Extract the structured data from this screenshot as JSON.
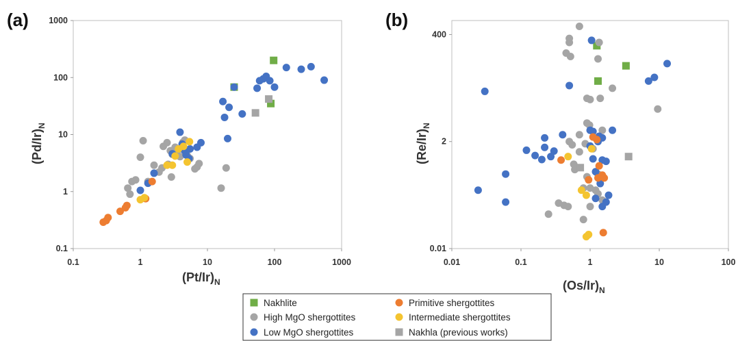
{
  "chart_data": [
    {
      "type": "scatter",
      "panel_label": "(a)",
      "xlabel": "(Pt/Ir)",
      "xlabel_sub": "N",
      "ylabel": "(Pd/Ir)",
      "ylabel_sub": "N",
      "xscale": "log",
      "yscale": "log",
      "xlim": [
        0.1,
        1000
      ],
      "ylim": [
        0.1,
        1000
      ],
      "xticks": [
        "0.1",
        "1",
        "10",
        "100",
        "1000"
      ],
      "yticks": [
        "0.1",
        "1",
        "10",
        "100",
        "1000"
      ],
      "grid": false,
      "series": [
        {
          "name": "Nakhlite",
          "marker": "square",
          "color": "#70ad47",
          "points": [
            [
              97,
              200
            ],
            [
              88,
              35
            ],
            [
              25,
              68
            ]
          ]
        },
        {
          "name": "High MgO shergottites",
          "marker": "circle",
          "color": "#a5a5a5",
          "points": [
            [
              0.65,
              1.15
            ],
            [
              0.7,
              0.9
            ],
            [
              0.75,
              1.5
            ],
            [
              0.85,
              1.6
            ],
            [
              1.0,
              4.0
            ],
            [
              1.1,
              7.8
            ],
            [
              1.3,
              1.5
            ],
            [
              1.6,
              2.9
            ],
            [
              1.9,
              2.2
            ],
            [
              2.1,
              2.6
            ],
            [
              2.2,
              6.2
            ],
            [
              2.5,
              7.2
            ],
            [
              2.6,
              3.0
            ],
            [
              2.8,
              5.2
            ],
            [
              2.9,
              1.8
            ],
            [
              3.0,
              4.5
            ],
            [
              3.3,
              6.0
            ],
            [
              3.6,
              5.3
            ],
            [
              3.9,
              4.1
            ],
            [
              4.3,
              7.3
            ],
            [
              4.6,
              8.0
            ],
            [
              5.0,
              4.3
            ],
            [
              5.5,
              3.8
            ],
            [
              6.5,
              2.5
            ],
            [
              7.5,
              3.1
            ],
            [
              7.0,
              2.7
            ],
            [
              16,
              1.15
            ],
            [
              19,
              2.6
            ]
          ]
        },
        {
          "name": "Low MgO shergottites",
          "marker": "circle",
          "color": "#4472c4",
          "points": [
            [
              1.0,
              1.05
            ],
            [
              1.3,
              1.4
            ],
            [
              1.6,
              2.1
            ],
            [
              3.0,
              4.6
            ],
            [
              3.9,
              11
            ],
            [
              4.2,
              6.8
            ],
            [
              4.5,
              5.3
            ],
            [
              4.8,
              4.4
            ],
            [
              5.5,
              5.6
            ],
            [
              5.3,
              3.8
            ],
            [
              7.0,
              6.0
            ],
            [
              8.0,
              7.2
            ],
            [
              17,
              38
            ],
            [
              18,
              20
            ],
            [
              20,
              8.5
            ],
            [
              21,
              30
            ],
            [
              25,
              68
            ],
            [
              33,
              23
            ],
            [
              55,
              65
            ],
            [
              60,
              88
            ],
            [
              68,
              95
            ],
            [
              75,
              105
            ],
            [
              85,
              88
            ],
            [
              100,
              68
            ],
            [
              150,
              150
            ],
            [
              250,
              140
            ],
            [
              350,
              155
            ],
            [
              550,
              90
            ]
          ]
        },
        {
          "name": "Primitive shergottites",
          "marker": "circle",
          "color": "#ed7d31",
          "points": [
            [
              0.28,
              0.29
            ],
            [
              0.31,
              0.31
            ],
            [
              0.33,
              0.35
            ],
            [
              0.5,
              0.45
            ],
            [
              0.6,
              0.52
            ],
            [
              0.63,
              0.57
            ],
            [
              1.2,
              0.75
            ],
            [
              1.5,
              1.5
            ]
          ]
        },
        {
          "name": "Intermediate shergottites",
          "marker": "circle",
          "color": "#f4c430",
          "points": [
            [
              1.0,
              0.72
            ],
            [
              1.15,
              0.78
            ],
            [
              2.5,
              2.9
            ],
            [
              3.0,
              2.9
            ],
            [
              3.3,
              4.2
            ],
            [
              3.7,
              5.6
            ],
            [
              4.4,
              6.2
            ],
            [
              5.0,
              3.3
            ],
            [
              5.4,
              7.5
            ]
          ]
        },
        {
          "name": "Nakhla (previous works)",
          "marker": "square",
          "color": "#a5a5a5",
          "points": [
            [
              52,
              24
            ],
            [
              82,
              42
            ]
          ]
        }
      ]
    },
    {
      "type": "scatter",
      "panel_label": "(b)",
      "xlabel": "(Os/Ir)",
      "xlabel_sub": "N",
      "ylabel": "(Re/Ir)",
      "ylabel_sub": "N",
      "xscale": "log",
      "yscale": "log",
      "xlim": [
        0.01,
        100
      ],
      "ylim": [
        0.01,
        800
      ],
      "xticks": [
        "0.01",
        "0.1",
        "1",
        "10",
        "100"
      ],
      "yticks": [
        "0.01",
        "2",
        "400"
      ],
      "grid": false,
      "series": [
        {
          "name": "Nakhlite",
          "marker": "square",
          "color": "#70ad47",
          "points": [
            [
              1.25,
              230
            ],
            [
              3.3,
              85
            ],
            [
              1.3,
              40
            ]
          ]
        },
        {
          "name": "High MgO shergottites",
          "marker": "circle",
          "color": "#a5a5a5",
          "points": [
            [
              0.7,
              600
            ],
            [
              0.5,
              330
            ],
            [
              0.5,
              270
            ],
            [
              1.35,
              270
            ],
            [
              0.45,
              160
            ],
            [
              0.52,
              135
            ],
            [
              1.3,
              120
            ],
            [
              2.1,
              28
            ],
            [
              0.9,
              17
            ],
            [
              1.0,
              16
            ],
            [
              1.4,
              17
            ],
            [
              9.5,
              10
            ],
            [
              0.9,
              5
            ],
            [
              0.98,
              4.5
            ],
            [
              1.5,
              3.5
            ],
            [
              0.5,
              2
            ],
            [
              0.7,
              2.8
            ],
            [
              0.55,
              1.7
            ],
            [
              0.85,
              1.8
            ],
            [
              1.1,
              1.4
            ],
            [
              0.7,
              1.2
            ],
            [
              0.58,
              0.65
            ],
            [
              0.6,
              0.5
            ],
            [
              0.9,
              0.35
            ],
            [
              1.3,
              0.4
            ],
            [
              0.8,
              0.2
            ],
            [
              1.0,
              0.2
            ],
            [
              1.2,
              0.18
            ],
            [
              1.3,
              0.15
            ],
            [
              1.5,
              0.11
            ],
            [
              0.35,
              0.095
            ],
            [
              0.42,
              0.085
            ],
            [
              0.48,
              0.08
            ],
            [
              1.0,
              0.08
            ],
            [
              0.25,
              0.055
            ],
            [
              0.8,
              0.042
            ]
          ]
        },
        {
          "name": "Low MgO shergottites",
          "marker": "circle",
          "color": "#4472c4",
          "points": [
            [
              1.05,
              300
            ],
            [
              0.03,
              24
            ],
            [
              0.5,
              32
            ],
            [
              7,
              40
            ],
            [
              8.5,
              48
            ],
            [
              13,
              95
            ],
            [
              0.22,
              2.4
            ],
            [
              0.4,
              2.8
            ],
            [
              0.12,
              1.3
            ],
            [
              0.16,
              1.0
            ],
            [
              0.2,
              0.82
            ],
            [
              0.22,
              1.5
            ],
            [
              0.27,
              0.95
            ],
            [
              0.3,
              1.25
            ],
            [
              0.06,
              0.4
            ],
            [
              0.024,
              0.18
            ],
            [
              0.06,
              0.1
            ],
            [
              1.0,
              3.5
            ],
            [
              1.1,
              3.3
            ],
            [
              1.3,
              2.0
            ],
            [
              1.35,
              2.6
            ],
            [
              1.5,
              2.4
            ],
            [
              1.0,
              1.6
            ],
            [
              1.1,
              0.85
            ],
            [
              1.5,
              0.8
            ],
            [
              1.7,
              0.75
            ],
            [
              2.1,
              3.5
            ],
            [
              1.2,
              0.45
            ],
            [
              1.4,
              0.25
            ],
            [
              1.2,
              0.12
            ],
            [
              1.5,
              0.08
            ],
            [
              1.7,
              0.1
            ],
            [
              1.85,
              0.14
            ]
          ]
        },
        {
          "name": "Primitive shergottites",
          "marker": "circle",
          "color": "#ed7d31",
          "points": [
            [
              1.1,
              2.5
            ],
            [
              1.25,
              2.2
            ],
            [
              0.38,
              0.8
            ],
            [
              1.35,
              0.6
            ],
            [
              1.5,
              0.38
            ],
            [
              0.95,
              0.3
            ],
            [
              1.3,
              0.33
            ],
            [
              1.6,
              0.33
            ],
            [
              1.55,
              0.022
            ]
          ]
        },
        {
          "name": "Intermediate shergottites",
          "marker": "circle",
          "color": "#f4c430",
          "points": [
            [
              1.05,
              1.4
            ],
            [
              0.48,
              0.95
            ],
            [
              0.75,
              0.18
            ],
            [
              0.88,
              0.14
            ],
            [
              0.88,
              0.018
            ],
            [
              0.95,
              0.02
            ]
          ]
        },
        {
          "name": "Nakhla (previous works)",
          "marker": "square",
          "color": "#a5a5a5",
          "points": [
            [
              3.6,
              0.95
            ],
            [
              0.72,
              0.55
            ]
          ]
        }
      ]
    }
  ],
  "legend": {
    "placement": "bottom-center",
    "items": [
      {
        "label": "Nakhlite",
        "marker": "square",
        "color": "#70ad47"
      },
      {
        "label": "Primitive shergottites",
        "marker": "circle",
        "color": "#ed7d31"
      },
      {
        "label": "High MgO shergottites",
        "marker": "circle",
        "color": "#a5a5a5"
      },
      {
        "label": "Intermediate shergottites",
        "marker": "circle",
        "color": "#f4c430"
      },
      {
        "label": "Low MgO shergottites",
        "marker": "circle",
        "color": "#4472c4"
      },
      {
        "label": "Nakhla (previous works)",
        "marker": "square",
        "color": "#a5a5a5"
      }
    ]
  }
}
